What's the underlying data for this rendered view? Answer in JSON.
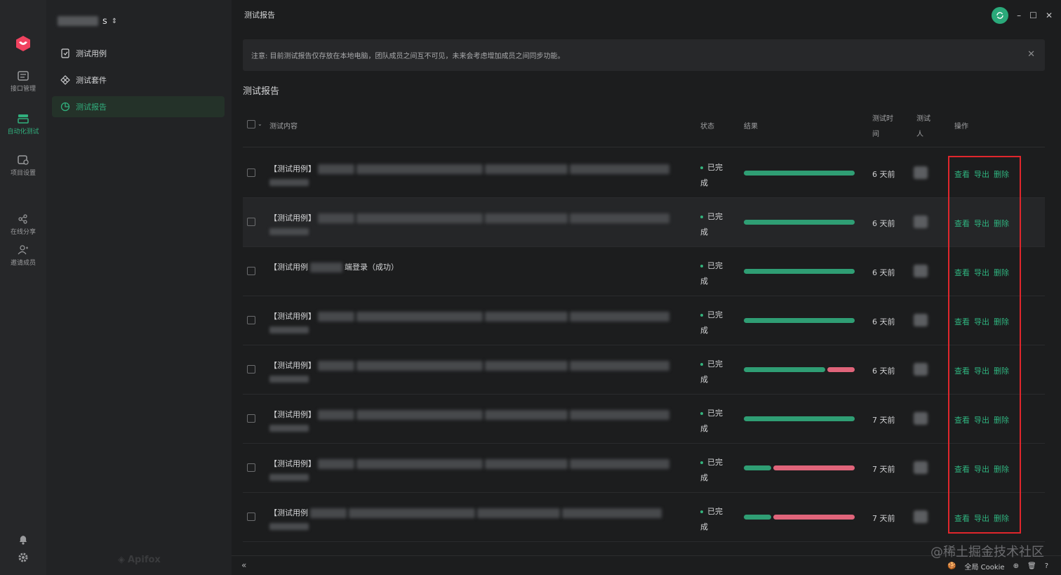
{
  "rail": {
    "items": [
      {
        "label": "接口管理",
        "active": false,
        "icon": "api-management-icon"
      },
      {
        "label": "自动化测试",
        "active": true,
        "icon": "automation-test-icon"
      },
      {
        "label": "项目设置",
        "active": false,
        "icon": "project-settings-icon"
      },
      {
        "label": "在线分享",
        "active": false,
        "icon": "share-icon"
      },
      {
        "label": "邀请成员",
        "active": false,
        "icon": "invite-member-icon"
      }
    ]
  },
  "nav": {
    "project_suffix": "s",
    "items": [
      {
        "label": "测试用例",
        "active": false
      },
      {
        "label": "测试套件",
        "active": false
      },
      {
        "label": "测试报告",
        "active": true
      }
    ],
    "brand": "Apifox"
  },
  "main": {
    "window_title": "测试报告",
    "notice": "注意: 目前测试报告仅存放在本地电脑，团队成员之间互不可见，未来会考虑增加成员之间同步功能。",
    "section_title": "测试报告",
    "columns": {
      "content": "测试内容",
      "status": "状态",
      "result": "结果",
      "time_1": "测试时",
      "time_2": "间",
      "tester_1": "测试",
      "tester_2": "人",
      "ops": "操作"
    },
    "rows": [
      {
        "prefix": "【测试用例】",
        "suffix": "",
        "status_1": "已完",
        "status_2": "成",
        "pass": 1.0,
        "time": "6 天前"
      },
      {
        "prefix": "【测试用例】",
        "suffix": "",
        "status_1": "已完",
        "status_2": "成",
        "pass": 1.0,
        "time": "6 天前"
      },
      {
        "prefix": "【测试用例",
        "suffix": "端登录（成功）",
        "status_1": "已完",
        "status_2": "成",
        "pass": 1.0,
        "time": "6 天前"
      },
      {
        "prefix": "【测试用例】",
        "suffix": "",
        "status_1": "已完",
        "status_2": "成",
        "pass": 1.0,
        "time": "6 天前"
      },
      {
        "prefix": "【测试用例】",
        "suffix": "",
        "status_1": "已完",
        "status_2": "成",
        "pass": 0.75,
        "time": "6 天前"
      },
      {
        "prefix": "【测试用例】",
        "suffix": "",
        "status_1": "已完",
        "status_2": "成",
        "pass": 1.0,
        "time": "7 天前"
      },
      {
        "prefix": "【测试用例】",
        "suffix": "",
        "status_1": "已完",
        "status_2": "成",
        "pass": 0.25,
        "time": "7 天前"
      },
      {
        "prefix": "【测试用例",
        "suffix": "",
        "status_1": "已完",
        "status_2": "成",
        "pass": 0.25,
        "time": "7 天前"
      }
    ],
    "ops_labels": {
      "view": "查看",
      "export": "导出",
      "delete": "删除"
    }
  },
  "footer": {
    "cookie_label": "全局 Cookie"
  },
  "watermark": "@稀土掘金技术社区",
  "colors": {
    "accent": "#31b07e",
    "pass": "#2f9e74",
    "fail": "#e0647a",
    "highlight": "#e0262c"
  }
}
